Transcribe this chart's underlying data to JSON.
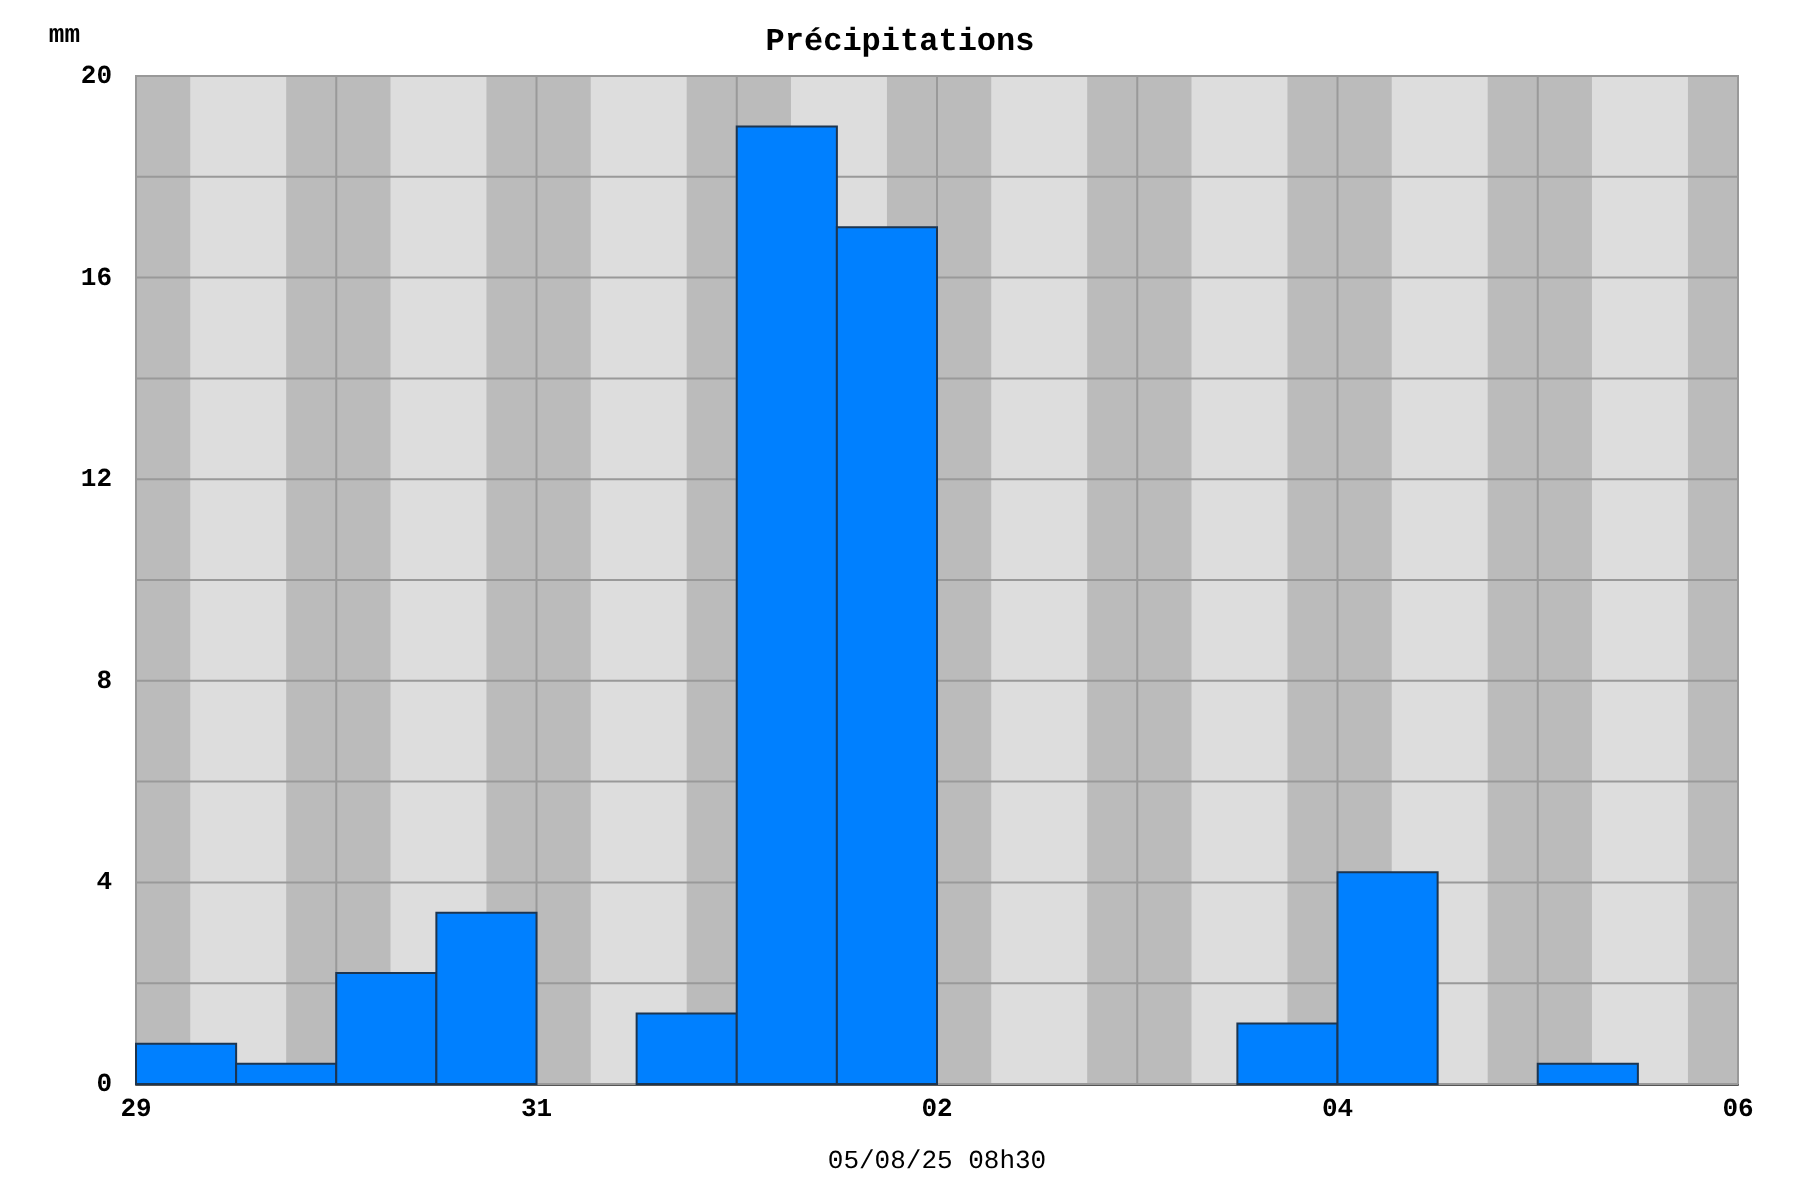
{
  "chart_data": {
    "type": "histogram",
    "title": "Précipitations",
    "ylabel": "mm",
    "xlabel": "05/08/25 08h30",
    "bins": [
      "--07-29T00:00",
      "--07-29T12:00",
      "--07-30T00:00",
      "--07-30T12:00",
      "--07-31T00:00",
      "--07-31T12:00",
      "--08-01T00:00",
      "--08-01T12:00",
      "--08-02T00:00",
      "--08-02T12:00",
      "--08-03T00:00",
      "--08-03T12:00",
      "--08-04T00:00",
      "--08-04T12:00",
      "--08-05T00:00",
      "--08-05T12:00",
      "--08-06T00:00"
    ],
    "values": [
      0.8,
      0.4,
      2.2,
      3.4,
      0,
      1.4,
      19,
      17,
      0,
      0,
      0,
      1.2,
      4.2,
      0,
      0.4,
      0
    ],
    "color": "#0080ff",
    "xlim": [
      "--07-29",
      "--08-06"
    ],
    "xticks": [
      {
        "value": "--07-29",
        "label": "29"
      },
      {
        "value": "--07-30",
        "label": null
      },
      {
        "value": "--07-31",
        "label": "31"
      },
      {
        "value": "--08-01",
        "label": null
      },
      {
        "value": "--08-02",
        "label": "02"
      },
      {
        "value": "--08-03",
        "label": null
      },
      {
        "value": "--08-04",
        "label": "04"
      },
      {
        "value": "--08-05",
        "label": null
      },
      {
        "value": "--08-06",
        "label": "06"
      }
    ],
    "ylim": [
      0,
      20
    ],
    "yticks": [
      0,
      {
        "value": 2,
        "label": null
      },
      4,
      {
        "value": 6,
        "label": null
      },
      8,
      {
        "value": 10,
        "label": null
      },
      12,
      {
        "value": 14,
        "label": null
      },
      16,
      {
        "value": 18,
        "label": null
      },
      20
    ],
    "grid": true,
    "bands": [
      {
        "axis": "x",
        "from": "--07-29T00:00",
        "to": "--07-29T06:30",
        "color": "#bbbbbb"
      },
      {
        "axis": "x",
        "from": "--07-29T18:00",
        "to": "--07-30T06:30",
        "color": "#bbbbbb"
      },
      {
        "axis": "x",
        "from": "--07-30T18:00",
        "to": "--07-31T06:30",
        "color": "#bbbbbb"
      },
      {
        "axis": "x",
        "from": "--07-31T18:00",
        "to": "--08-01T06:30",
        "color": "#bbbbbb"
      },
      {
        "axis": "x",
        "from": "--08-01T18:00",
        "to": "--08-02T06:30",
        "color": "#bbbbbb"
      },
      {
        "axis": "x",
        "from": "--08-02T18:00",
        "to": "--08-03T06:30",
        "color": "#bbbbbb"
      },
      {
        "axis": "x",
        "from": "--08-03T18:00",
        "to": "--08-04T06:30",
        "color": "#bbbbbb"
      },
      {
        "axis": "x",
        "from": "--08-04T18:00",
        "to": "--08-05T06:30",
        "color": "#bbbbbb"
      },
      {
        "axis": "x",
        "from": "--08-05T18:00",
        "to": "--08-06T00:00",
        "color": "#bbbbbb"
      }
    ]
  }
}
